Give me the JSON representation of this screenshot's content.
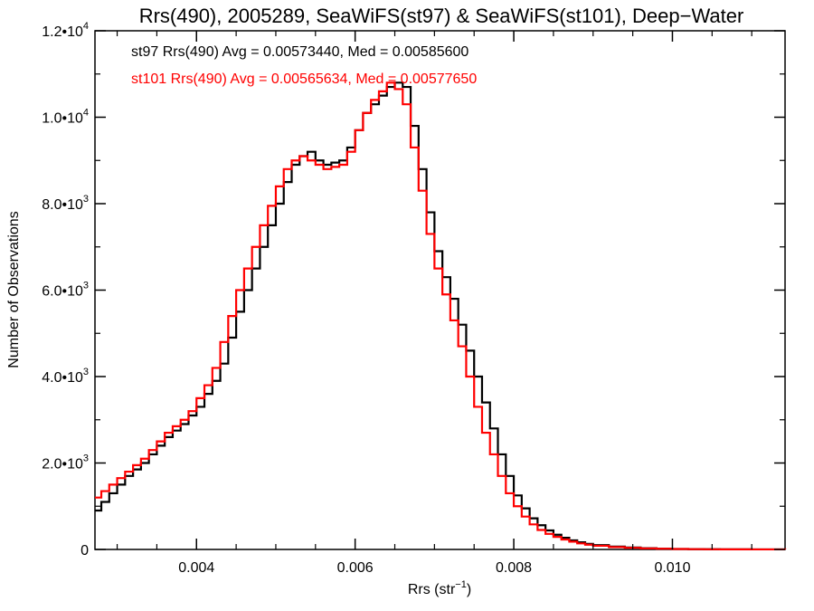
{
  "chart_data": {
    "type": "line",
    "title": "Rrs(490), 2005289, SeaWiFS(st97) & SeaWiFS(st101), Deep−Water",
    "xlabel": "Rrs (str",
    "xlabel_sup": "−1",
    "xlabel_end": ")",
    "ylabel": "Number of Observations",
    "xlim": [
      0.00272,
      0.01142
    ],
    "ylim": [
      0,
      12000
    ],
    "x_ticks": [
      {
        "value": 0.004,
        "label": "0.004"
      },
      {
        "value": 0.006,
        "label": "0.006"
      },
      {
        "value": 0.008,
        "label": "0.008"
      },
      {
        "value": 0.01,
        "label": "0.010"
      }
    ],
    "y_ticks": [
      {
        "value": 0,
        "mant": "0",
        "exp": ""
      },
      {
        "value": 2000,
        "mant": "2.0•10",
        "exp": "3"
      },
      {
        "value": 4000,
        "mant": "4.0•10",
        "exp": "3"
      },
      {
        "value": 6000,
        "mant": "6.0•10",
        "exp": "3"
      },
      {
        "value": 8000,
        "mant": "8.0•10",
        "exp": "3"
      },
      {
        "value": 10000,
        "mant": "1.0•10",
        "exp": "4"
      },
      {
        "value": 12000,
        "mant": "1.2•10",
        "exp": "4"
      }
    ],
    "grid": false,
    "legend_position": "top-left",
    "series": [
      {
        "name": "st97",
        "label": "st97 Rrs(490) Avg = 0.00573440, Med = 0.00585600",
        "color": "#000000",
        "x": [
          0.00272,
          0.0028,
          0.0029,
          0.003,
          0.0031,
          0.0032,
          0.0033,
          0.0034,
          0.0035,
          0.0036,
          0.0037,
          0.0038,
          0.0039,
          0.004,
          0.0041,
          0.0042,
          0.0043,
          0.0044,
          0.0045,
          0.0046,
          0.0047,
          0.0048,
          0.0049,
          0.005,
          0.0051,
          0.0052,
          0.0053,
          0.0054,
          0.0055,
          0.0056,
          0.0057,
          0.0058,
          0.0059,
          0.006,
          0.0061,
          0.0062,
          0.0063,
          0.0064,
          0.0065,
          0.0066,
          0.0067,
          0.0068,
          0.0069,
          0.007,
          0.0071,
          0.0072,
          0.0073,
          0.0074,
          0.0075,
          0.0076,
          0.0077,
          0.0078,
          0.0079,
          0.008,
          0.0081,
          0.0082,
          0.0083,
          0.0084,
          0.0085,
          0.0086,
          0.0087,
          0.0088,
          0.0089,
          0.009,
          0.0092,
          0.0094,
          0.0096,
          0.0098,
          0.01,
          0.0102,
          0.0104,
          0.0106,
          0.0108,
          0.011,
          0.01142
        ],
        "y": [
          900,
          1100,
          1300,
          1500,
          1700,
          1850,
          2000,
          2200,
          2400,
          2600,
          2750,
          2900,
          3100,
          3300,
          3600,
          3900,
          4300,
          4900,
          5500,
          6000,
          6500,
          7000,
          7500,
          8000,
          8500,
          8900,
          9100,
          9200,
          9000,
          8900,
          8950,
          9000,
          9300,
          9700,
          10100,
          10300,
          10500,
          10700,
          10800,
          10700,
          9800,
          8800,
          7800,
          6900,
          6300,
          5800,
          5200,
          4600,
          4000,
          3400,
          2800,
          2200,
          1700,
          1250,
          950,
          720,
          560,
          440,
          340,
          270,
          210,
          165,
          130,
          100,
          65,
          45,
          30,
          20,
          12,
          8,
          5,
          3,
          2,
          1,
          0
        ]
      },
      {
        "name": "st101",
        "label": "st101 Rrs(490) Avg = 0.00565634, Med = 0.00577650",
        "color": "#ff0000",
        "x": [
          0.00272,
          0.0028,
          0.0029,
          0.003,
          0.0031,
          0.0032,
          0.0033,
          0.0034,
          0.0035,
          0.0036,
          0.0037,
          0.0038,
          0.0039,
          0.004,
          0.0041,
          0.0042,
          0.0043,
          0.0044,
          0.0045,
          0.0046,
          0.0047,
          0.0048,
          0.0049,
          0.005,
          0.0051,
          0.0052,
          0.0053,
          0.0054,
          0.0055,
          0.0056,
          0.0057,
          0.0058,
          0.0059,
          0.006,
          0.0061,
          0.0062,
          0.0063,
          0.0064,
          0.0065,
          0.0066,
          0.0067,
          0.0068,
          0.0069,
          0.007,
          0.0071,
          0.0072,
          0.0073,
          0.0074,
          0.0075,
          0.0076,
          0.0077,
          0.0078,
          0.0079,
          0.008,
          0.0081,
          0.0082,
          0.0083,
          0.0084,
          0.0085,
          0.0086,
          0.0087,
          0.0088,
          0.0089,
          0.009,
          0.0092,
          0.0094,
          0.0096,
          0.0098,
          0.01,
          0.0102,
          0.0104,
          0.0106,
          0.0108,
          0.011,
          0.01142
        ],
        "y": [
          1200,
          1350,
          1500,
          1650,
          1800,
          1950,
          2100,
          2300,
          2500,
          2700,
          2850,
          3000,
          3200,
          3500,
          3800,
          4200,
          4800,
          5400,
          6000,
          6500,
          7000,
          7500,
          7950,
          8400,
          8800,
          9000,
          9100,
          9000,
          8900,
          8800,
          8850,
          8900,
          9200,
          9700,
          10100,
          10400,
          10600,
          10800,
          10650,
          10300,
          9300,
          8300,
          7300,
          6500,
          5900,
          5300,
          4700,
          4000,
          3300,
          2700,
          2200,
          1700,
          1300,
          1000,
          760,
          580,
          450,
          360,
          290,
          230,
          180,
          140,
          110,
          85,
          55,
          38,
          25,
          17,
          10,
          7,
          4,
          3,
          2,
          1,
          0
        ]
      }
    ]
  }
}
